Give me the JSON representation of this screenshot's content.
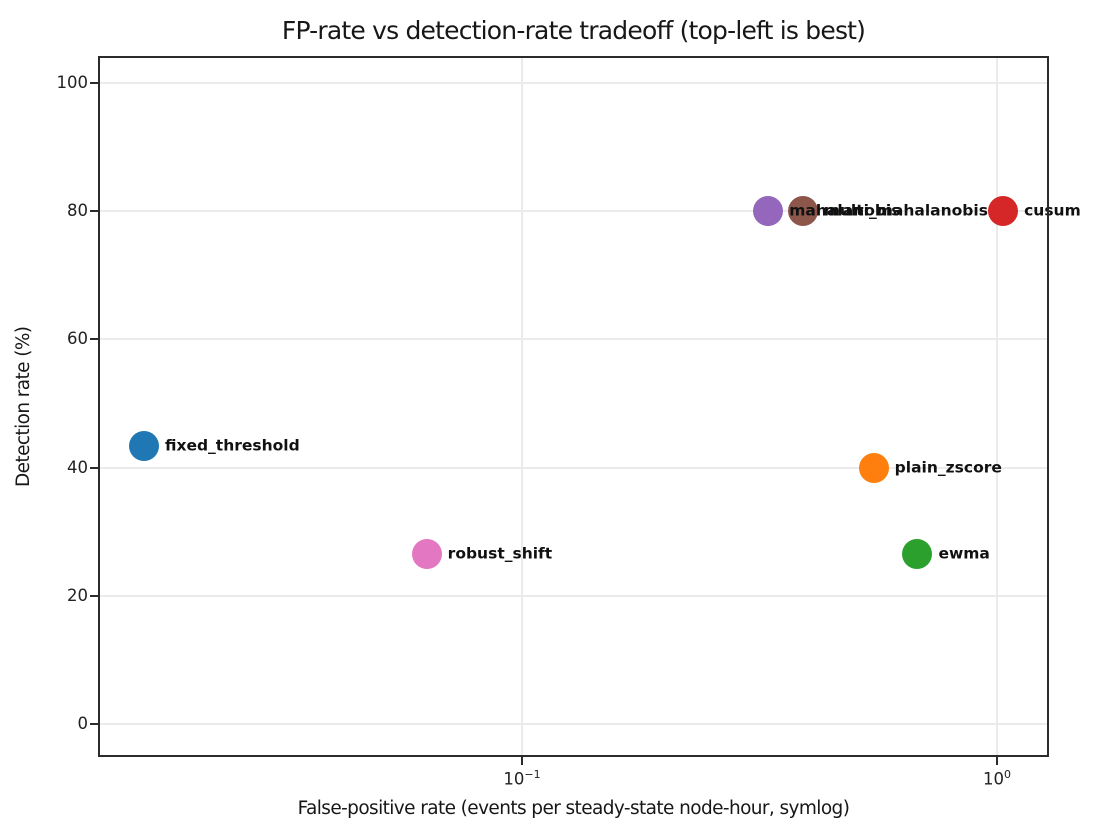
{
  "chart_data": {
    "type": "scatter",
    "title": "FP-rate vs detection-rate tradeoff (top-left is best)",
    "xlabel": "False-positive rate (events per steady-state node-hour, symlog)",
    "ylabel": "Detection rate (%)",
    "x_scale": "symlog",
    "grid": true,
    "legend": "none",
    "ylim": [
      -5,
      105
    ],
    "xlim": [
      0.013,
      1.3
    ],
    "y_ticks": [
      0,
      20,
      40,
      60,
      80,
      100
    ],
    "x_ticks": [
      {
        "value": 0.1,
        "base": "10",
        "exp": "−1"
      },
      {
        "value": 1,
        "base": "10",
        "exp": "0"
      }
    ],
    "points": [
      {
        "name": "fixed_threshold",
        "fp_rate": 0.016,
        "detection_rate": 43.3,
        "color": "#1f77b4"
      },
      {
        "name": "robust_shift",
        "fp_rate": 0.063,
        "detection_rate": 26.5,
        "color": "#e377c2"
      },
      {
        "name": "plain_zscore",
        "fp_rate": 0.55,
        "detection_rate": 40,
        "color": "#ff7f0e"
      },
      {
        "name": "ewma",
        "fp_rate": 0.68,
        "detection_rate": 26.5,
        "color": "#2ca02c"
      },
      {
        "name": "mahalanobis",
        "fp_rate": 0.33,
        "detection_rate": 80,
        "color": "#9467bd"
      },
      {
        "name": "multi_mahalanobis",
        "fp_rate": 0.39,
        "detection_rate": 80,
        "color": "#8c564b"
      },
      {
        "name": "cusum",
        "fp_rate": 1.03,
        "detection_rate": 80,
        "color": "#d62728"
      }
    ]
  }
}
